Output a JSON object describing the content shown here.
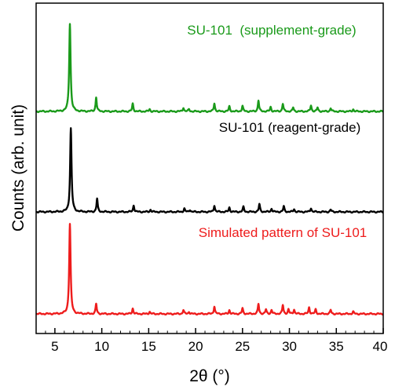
{
  "chart_data": {
    "type": "line",
    "xlabel": "2θ (°)",
    "ylabel": "Counts (arb. unit)",
    "xlim": [
      3,
      40
    ],
    "xticks": [
      5,
      10,
      15,
      20,
      25,
      30,
      35,
      40
    ],
    "yticks_shown": false,
    "grid": false,
    "legend": "labels placed above each stacked pattern",
    "series": [
      {
        "name": "SU-101  (supplement-grade)",
        "color": "#1a9a1a",
        "baseline_offset": 2,
        "peaks": [
          {
            "x": 6.6,
            "height": 0.8
          },
          {
            "x": 9.4,
            "height": 0.13
          },
          {
            "x": 13.3,
            "height": 0.07
          },
          {
            "x": 15.1,
            "height": 0.02
          },
          {
            "x": 18.7,
            "height": 0.035
          },
          {
            "x": 19.3,
            "height": 0.02
          },
          {
            "x": 22.0,
            "height": 0.075
          },
          {
            "x": 23.6,
            "height": 0.045
          },
          {
            "x": 25.0,
            "height": 0.05
          },
          {
            "x": 26.7,
            "height": 0.1
          },
          {
            "x": 28.0,
            "height": 0.04
          },
          {
            "x": 29.3,
            "height": 0.07
          },
          {
            "x": 30.4,
            "height": 0.035
          },
          {
            "x": 32.3,
            "height": 0.055
          },
          {
            "x": 33.0,
            "height": 0.035
          },
          {
            "x": 34.4,
            "height": 0.03
          },
          {
            "x": 36.8,
            "height": 0.02
          }
        ]
      },
      {
        "name": "SU-101 (reagent-grade)",
        "color": "#000000",
        "baseline_offset": 1,
        "peaks": [
          {
            "x": 6.7,
            "height": 0.76
          },
          {
            "x": 9.5,
            "height": 0.12
          },
          {
            "x": 13.4,
            "height": 0.06
          },
          {
            "x": 15.2,
            "height": 0.02
          },
          {
            "x": 18.8,
            "height": 0.03
          },
          {
            "x": 19.4,
            "height": 0.02
          },
          {
            "x": 22.0,
            "height": 0.06
          },
          {
            "x": 23.6,
            "height": 0.04
          },
          {
            "x": 25.1,
            "height": 0.045
          },
          {
            "x": 26.8,
            "height": 0.07
          },
          {
            "x": 28.1,
            "height": 0.03
          },
          {
            "x": 29.4,
            "height": 0.05
          },
          {
            "x": 30.5,
            "height": 0.025
          },
          {
            "x": 32.3,
            "height": 0.035
          },
          {
            "x": 34.4,
            "height": 0.02
          }
        ]
      },
      {
        "name": "Simulated pattern of SU-101",
        "color": "#ee1c1c",
        "baseline_offset": 0,
        "peaks": [
          {
            "x": 6.6,
            "height": 0.82
          },
          {
            "x": 9.4,
            "height": 0.09
          },
          {
            "x": 13.3,
            "height": 0.05
          },
          {
            "x": 15.1,
            "height": 0.02
          },
          {
            "x": 18.7,
            "height": 0.035
          },
          {
            "x": 19.3,
            "height": 0.02
          },
          {
            "x": 22.0,
            "height": 0.07
          },
          {
            "x": 23.6,
            "height": 0.035
          },
          {
            "x": 25.0,
            "height": 0.05
          },
          {
            "x": 26.7,
            "height": 0.09
          },
          {
            "x": 27.5,
            "height": 0.04
          },
          {
            "x": 28.1,
            "height": 0.035
          },
          {
            "x": 29.3,
            "height": 0.08
          },
          {
            "x": 29.9,
            "height": 0.04
          },
          {
            "x": 30.5,
            "height": 0.04
          },
          {
            "x": 32.1,
            "height": 0.06
          },
          {
            "x": 32.8,
            "height": 0.04
          },
          {
            "x": 34.4,
            "height": 0.035
          },
          {
            "x": 36.8,
            "height": 0.02
          }
        ]
      }
    ]
  }
}
